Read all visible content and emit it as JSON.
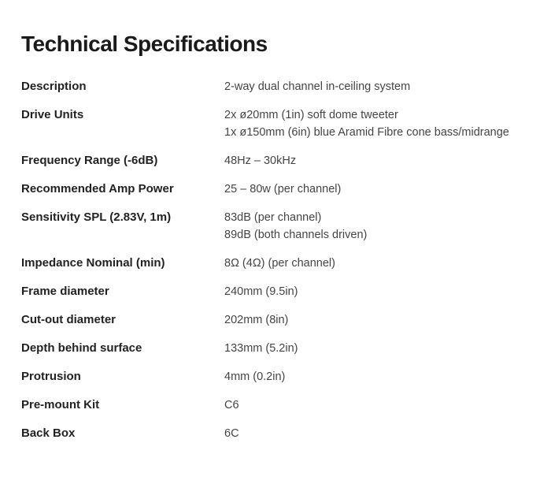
{
  "title": "Technical Specifications",
  "specs": [
    {
      "label": "Description",
      "values": [
        "2-way dual channel in-ceiling system"
      ]
    },
    {
      "label": "Drive Units",
      "values": [
        "2x ø20mm (1in) soft dome tweeter",
        "1x ø150mm (6in) blue Aramid Fibre cone bass/midrange"
      ]
    },
    {
      "label": "Frequency Range (-6dB)",
      "values": [
        "48Hz – 30kHz"
      ]
    },
    {
      "label": "Recommended Amp Power",
      "values": [
        "25 – 80w (per channel)"
      ]
    },
    {
      "label": "Sensitivity SPL (2.83V, 1m)",
      "values": [
        "83dB (per channel)",
        "89dB (both channels driven)"
      ]
    },
    {
      "label": "Impedance Nominal (min)",
      "values": [
        "8Ω (4Ω) (per channel)"
      ]
    },
    {
      "label": "Frame diameter",
      "values": [
        "240mm (9.5in)"
      ]
    },
    {
      "label": "Cut-out diameter",
      "values": [
        "202mm (8in)"
      ]
    },
    {
      "label": "Depth behind surface",
      "values": [
        "133mm (5.2in)"
      ]
    },
    {
      "label": "Protrusion",
      "values": [
        "4mm (0.2in)"
      ]
    },
    {
      "label": "Pre-mount Kit",
      "values": [
        "C6"
      ]
    },
    {
      "label": "Back Box",
      "values": [
        "6C"
      ]
    }
  ]
}
